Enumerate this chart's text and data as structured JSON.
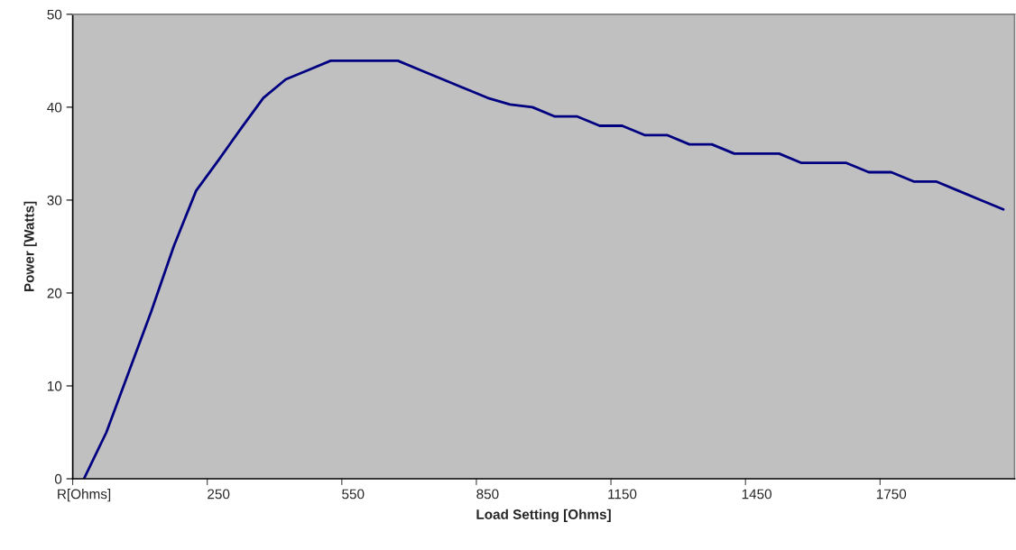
{
  "chart_data": {
    "type": "line",
    "xlabel": "Load Setting [Ohms]",
    "ylabel": "Power [Watts]",
    "categories": [
      "R[Ohms]",
      null,
      null,
      null,
      null,
      null,
      "250",
      null,
      null,
      null,
      null,
      null,
      "550",
      null,
      null,
      null,
      null,
      null,
      "850",
      null,
      null,
      null,
      null,
      null,
      "1150",
      null,
      null,
      null,
      null,
      null,
      "1450",
      null,
      null,
      null,
      null,
      null,
      "1750",
      null,
      null,
      null,
      null,
      null
    ],
    "series": [
      {
        "color": "#000080",
        "values": [
          0,
          5,
          11.5,
          18,
          25,
          31,
          34.3,
          37.7,
          41,
          43,
          44,
          45,
          45,
          45,
          45,
          44,
          43,
          42,
          41,
          40.3,
          40,
          39,
          39,
          38,
          38,
          37,
          37,
          36,
          36,
          35,
          35,
          35,
          34,
          34,
          34,
          33,
          33,
          32,
          32,
          31,
          30,
          29
        ]
      }
    ],
    "ylim": [
      0,
      50
    ],
    "yticks": [
      0,
      10,
      20,
      30,
      40,
      50
    ]
  }
}
